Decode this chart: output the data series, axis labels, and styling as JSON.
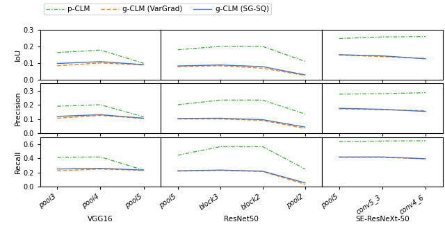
{
  "groups": [
    {
      "name": "VGG16",
      "xticks": [
        "pool3",
        "pool4",
        "pool5"
      ],
      "iou": {
        "pclm": [
          0.163,
          0.178,
          0.098
        ],
        "vargrad": [
          0.083,
          0.1,
          0.088
        ],
        "sgsq": [
          0.097,
          0.108,
          0.09
        ]
      },
      "precision": {
        "pclm": [
          0.19,
          0.2,
          0.115
        ],
        "vargrad": [
          0.105,
          0.125,
          0.103
        ],
        "sgsq": [
          0.118,
          0.13,
          0.105
        ]
      },
      "recall": {
        "pclm": [
          0.415,
          0.42,
          0.235
        ],
        "vargrad": [
          0.225,
          0.25,
          0.232
        ],
        "sgsq": [
          0.25,
          0.26,
          0.235
        ]
      }
    },
    {
      "name": "ResNet50",
      "xticks": [
        "pool5",
        "block3",
        "block2",
        "pool2"
      ],
      "iou": {
        "pclm": [
          0.18,
          0.2,
          0.2,
          0.11
        ],
        "vargrad": [
          0.078,
          0.083,
          0.068,
          0.025
        ],
        "sgsq": [
          0.082,
          0.088,
          0.078,
          0.028
        ]
      },
      "precision": {
        "pclm": [
          0.2,
          0.233,
          0.233,
          0.135
        ],
        "vargrad": [
          0.1,
          0.1,
          0.09,
          0.033
        ],
        "sgsq": [
          0.103,
          0.105,
          0.095,
          0.043
        ]
      },
      "recall": {
        "pclm": [
          0.445,
          0.565,
          0.565,
          0.25
        ],
        "vargrad": [
          0.22,
          0.23,
          0.215,
          0.035
        ],
        "sgsq": [
          0.225,
          0.235,
          0.22,
          0.055
        ]
      }
    },
    {
      "name": "SE-ResNeXt-50",
      "xticks": [
        "pool5",
        "conv5_3",
        "conv4_6"
      ],
      "iou": {
        "pclm": [
          0.248,
          0.257,
          0.26
        ],
        "vargrad": [
          0.148,
          0.138,
          0.128
        ],
        "sgsq": [
          0.15,
          0.143,
          0.125
        ]
      },
      "precision": {
        "pclm": [
          0.275,
          0.278,
          0.285
        ],
        "vargrad": [
          0.172,
          0.165,
          0.158
        ],
        "sgsq": [
          0.175,
          0.168,
          0.153
        ]
      },
      "recall": {
        "pclm": [
          0.635,
          0.645,
          0.648
        ],
        "vargrad": [
          0.415,
          0.415,
          0.393
        ],
        "sgsq": [
          0.42,
          0.42,
          0.395
        ]
      }
    }
  ],
  "colors": {
    "pclm": "#4daf4a",
    "vargrad": "#ff7f00",
    "sgsq": "#4472c4"
  },
  "ylim_iou": [
    0.0,
    0.3
  ],
  "ylim_precision": [
    0.0,
    0.35
  ],
  "ylim_recall": [
    0.0,
    0.7
  ],
  "yticks_iou": [
    0.0,
    0.1,
    0.2,
    0.3
  ],
  "yticks_precision": [
    0.0,
    0.1,
    0.2,
    0.3
  ],
  "yticks_recall": [
    0.0,
    0.2,
    0.4,
    0.6
  ],
  "ylabel_iou": "IoU",
  "ylabel_precision": "Precision",
  "ylabel_recall": "Recall",
  "legend_labels": [
    "p-CLM",
    "g-CLM (VarGrad)",
    "g-CLM (SG-SQ)"
  ],
  "group_names": [
    "VGG16",
    "ResNet50",
    "SE-ResNeXt-50"
  ]
}
